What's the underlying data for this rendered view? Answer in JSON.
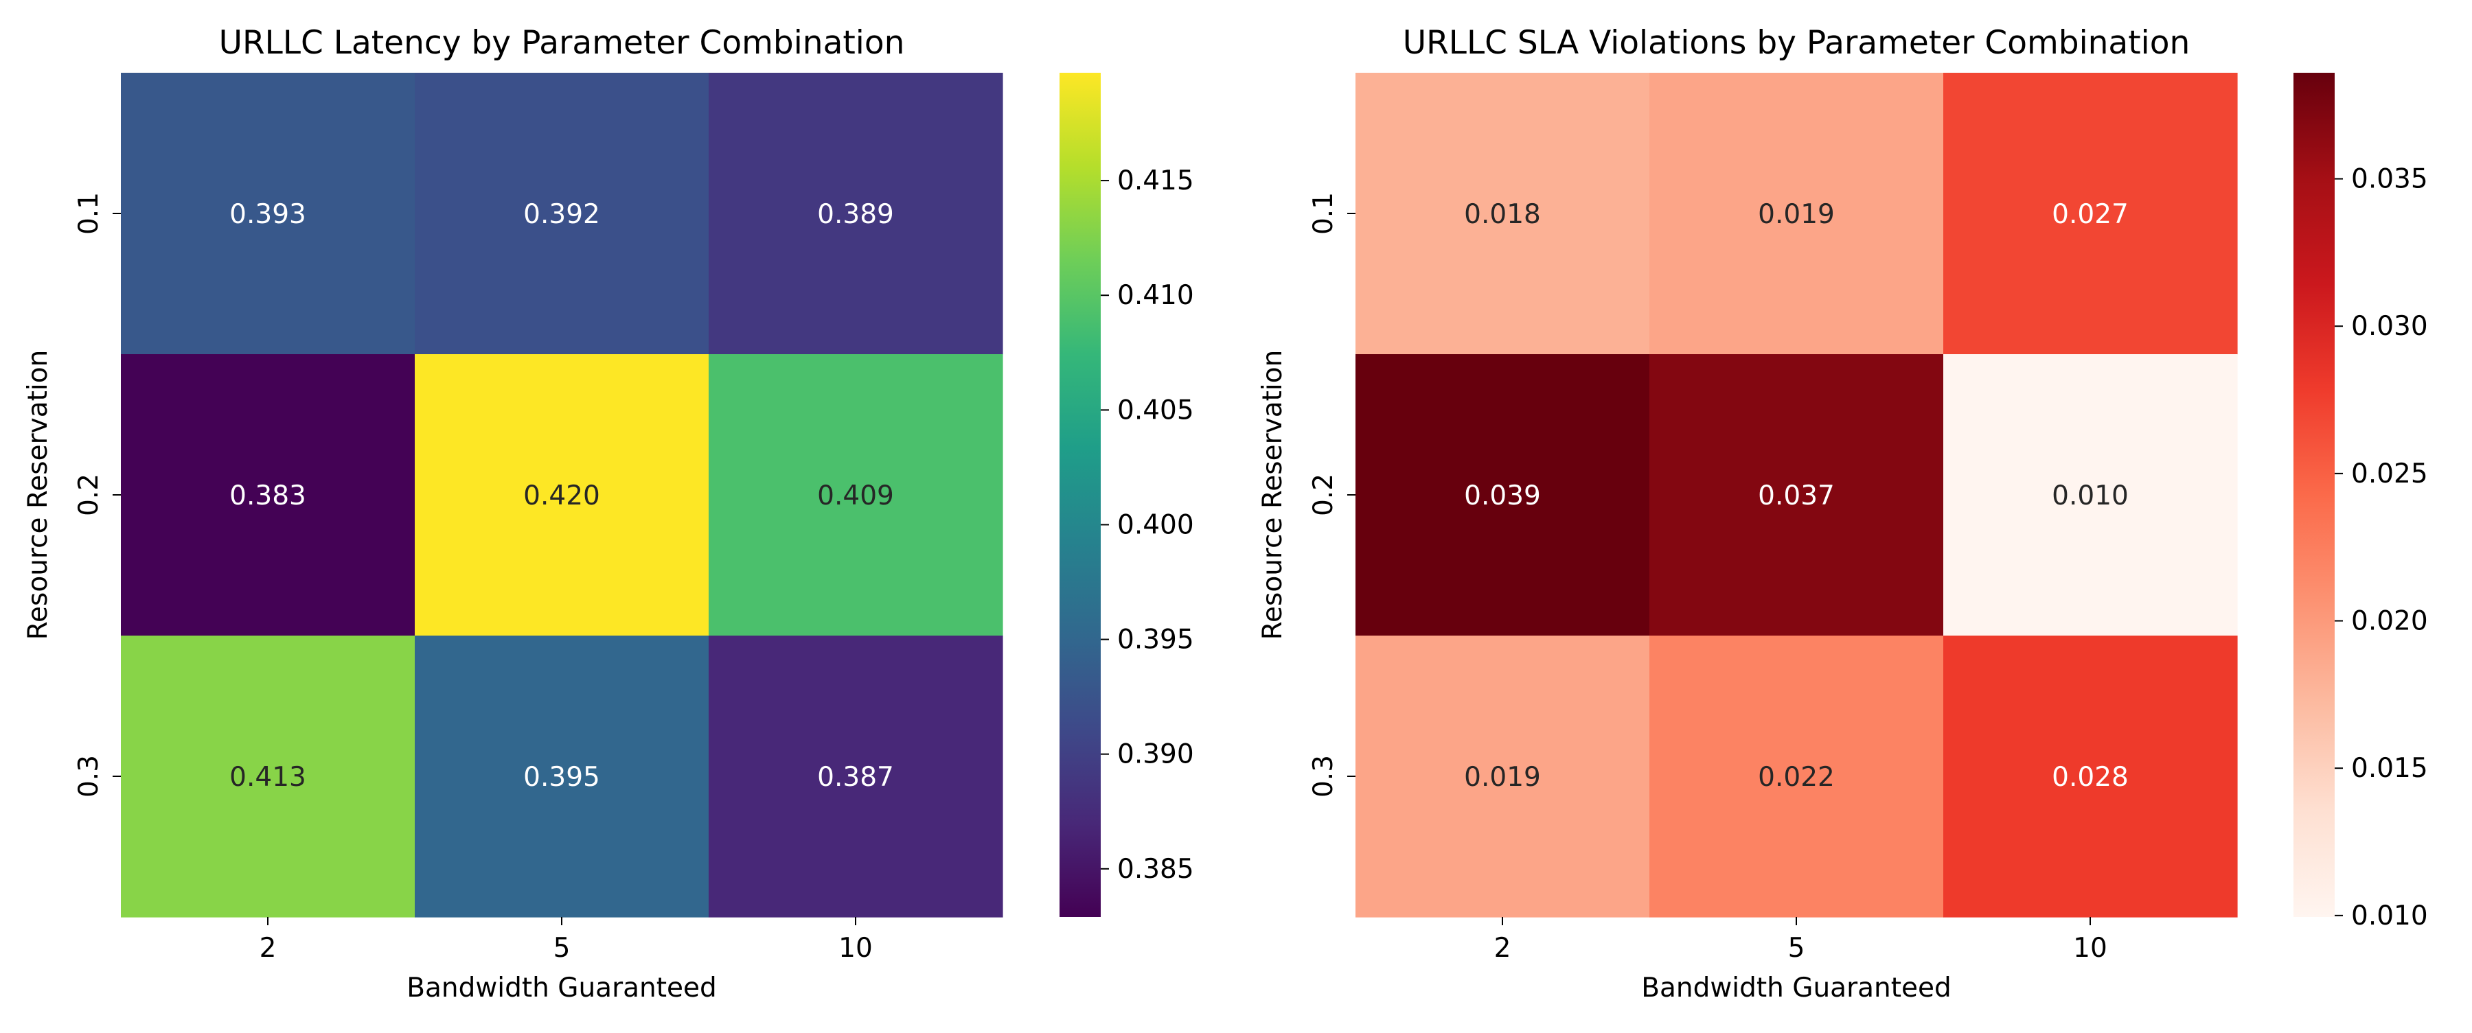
{
  "chart_data": [
    {
      "type": "heatmap",
      "title": "URLLC Latency by Parameter Combination",
      "xlabel": "Bandwidth Guaranteed",
      "ylabel": "Resource Reservation",
      "x_categories": [
        "2",
        "5",
        "10"
      ],
      "y_categories": [
        "0.1",
        "0.2",
        "0.3"
      ],
      "values": [
        [
          0.393,
          0.392,
          0.389
        ],
        [
          0.383,
          0.42,
          0.409
        ],
        [
          0.413,
          0.395,
          0.387
        ]
      ],
      "cell_labels": [
        [
          "0.393",
          "0.392",
          "0.389"
        ],
        [
          "0.383",
          "0.420",
          "0.409"
        ],
        [
          "0.413",
          "0.395",
          "0.387"
        ]
      ],
      "colormap": "viridis",
      "colorbar": {
        "range": [
          0.3829,
          0.4197
        ],
        "ticks": [
          0.385,
          0.39,
          0.395,
          0.4,
          0.405,
          0.41,
          0.415
        ],
        "tick_labels": [
          "0.385",
          "0.390",
          "0.395",
          "0.400",
          "0.405",
          "0.410",
          "0.415"
        ]
      },
      "grid": false
    },
    {
      "type": "heatmap",
      "title": "URLLC SLA Violations by Parameter Combination",
      "xlabel": "Bandwidth Guaranteed",
      "ylabel": "Resource Reservation",
      "x_categories": [
        "2",
        "5",
        "10"
      ],
      "y_categories": [
        "0.1",
        "0.2",
        "0.3"
      ],
      "values": [
        [
          0.018,
          0.019,
          0.027
        ],
        [
          0.039,
          0.037,
          0.01
        ],
        [
          0.019,
          0.022,
          0.028
        ]
      ],
      "cell_labels": [
        [
          "0.018",
          "0.019",
          "0.027"
        ],
        [
          "0.039",
          "0.037",
          "0.010"
        ],
        [
          "0.019",
          "0.022",
          "0.028"
        ]
      ],
      "colormap": "reds",
      "colorbar": {
        "range": [
          0.00995,
          0.0386
        ],
        "ticks": [
          0.01,
          0.015,
          0.02,
          0.025,
          0.03,
          0.035
        ],
        "tick_labels": [
          "0.010",
          "0.015",
          "0.020",
          "0.025",
          "0.030",
          "0.035"
        ]
      },
      "grid": false
    }
  ]
}
